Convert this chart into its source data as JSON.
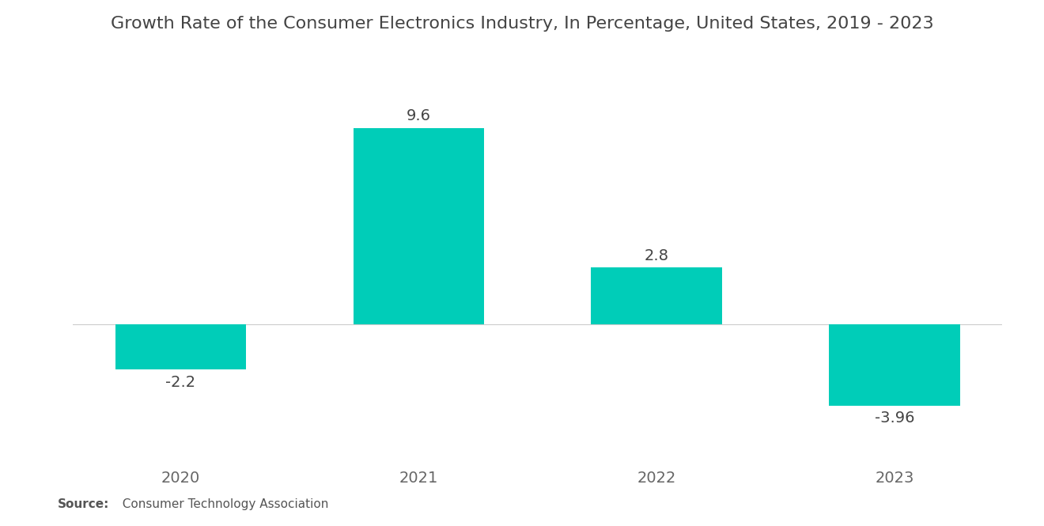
{
  "title": "Growth Rate of the Consumer Electronics Industry, In Percentage, United States, 2019 - 2023",
  "categories": [
    "2020",
    "2021",
    "2022",
    "2023"
  ],
  "values": [
    -2.2,
    9.6,
    2.8,
    -3.96
  ],
  "bar_color": "#00CDB8",
  "background_color": "#ffffff",
  "title_fontsize": 16,
  "label_fontsize": 14,
  "tick_fontsize": 14,
  "source_bold": "Source:",
  "source_normal": "  Consumer Technology Association",
  "source_fontsize": 11,
  "ylim": [
    -6.5,
    12.5
  ],
  "bar_width": 0.55
}
